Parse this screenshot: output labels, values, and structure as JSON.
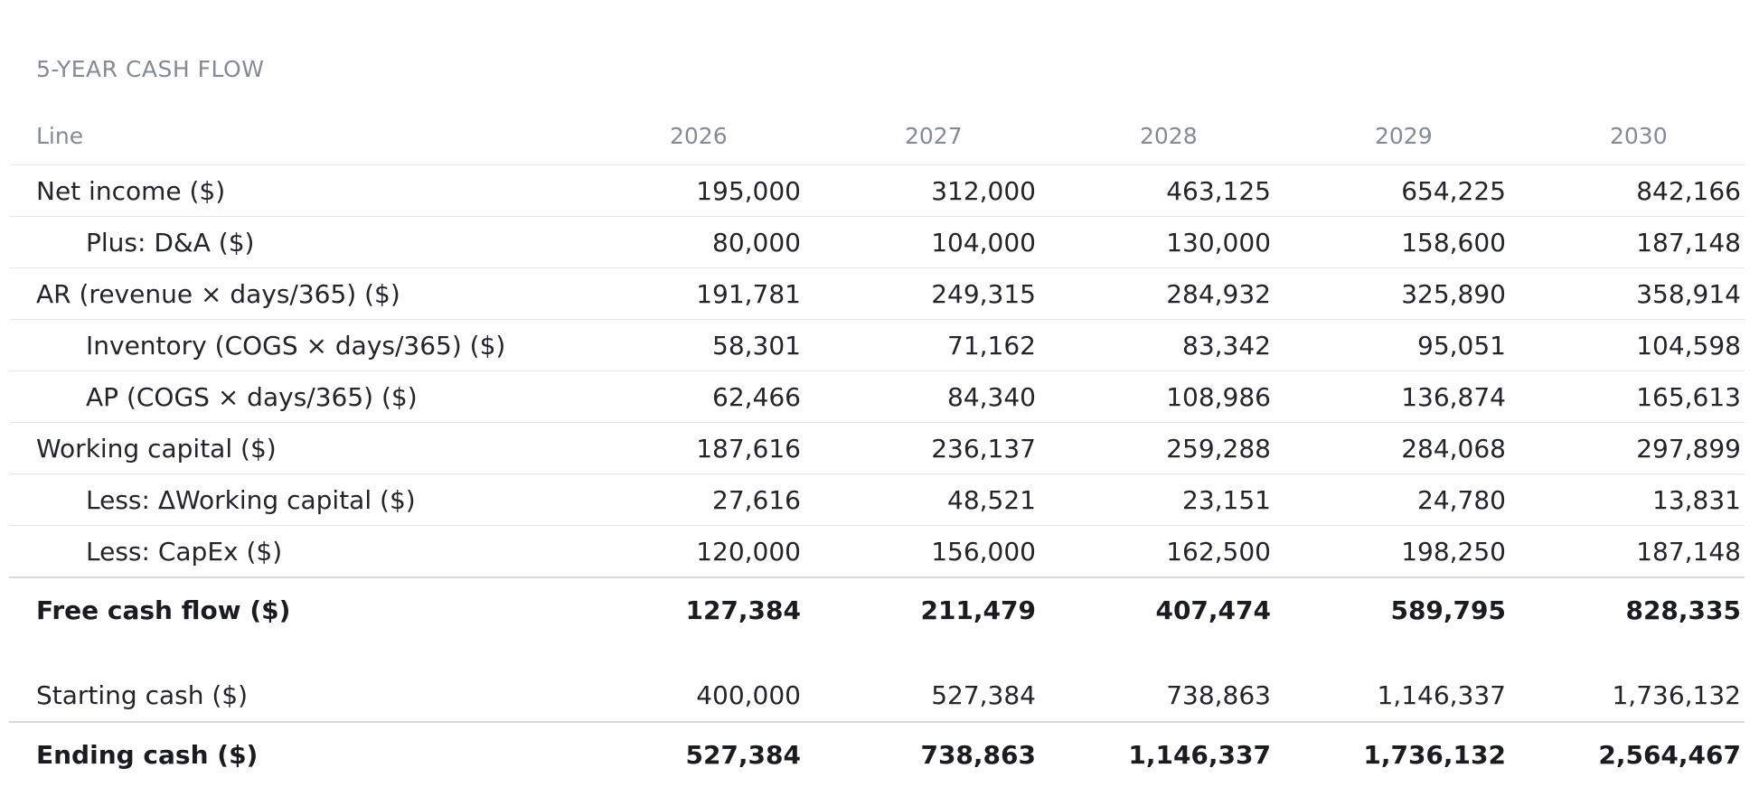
{
  "section_title": "5-YEAR CASH FLOW",
  "header": {
    "line": "Line",
    "years": [
      "2026",
      "2027",
      "2028",
      "2029",
      "2030"
    ]
  },
  "rows": [
    {
      "label": "Net income ($)",
      "values": [
        "195,000",
        "312,000",
        "463,125",
        "654,225",
        "842,166"
      ]
    },
    {
      "label": "Plus: D&A ($)",
      "values": [
        "80,000",
        "104,000",
        "130,000",
        "158,600",
        "187,148"
      ]
    },
    {
      "label": "AR (revenue × days/365) ($)",
      "values": [
        "191,781",
        "249,315",
        "284,932",
        "325,890",
        "358,914"
      ]
    },
    {
      "label": "Inventory (COGS × days/365) ($)",
      "values": [
        "58,301",
        "71,162",
        "83,342",
        "95,051",
        "104,598"
      ]
    },
    {
      "label": "AP (COGS × days/365) ($)",
      "values": [
        "62,466",
        "84,340",
        "108,986",
        "136,874",
        "165,613"
      ]
    },
    {
      "label": "Working capital ($)",
      "values": [
        "187,616",
        "236,137",
        "259,288",
        "284,068",
        "297,899"
      ]
    },
    {
      "label": "Less: ΔWorking capital ($)",
      "values": [
        "27,616",
        "48,521",
        "23,151",
        "24,780",
        "13,831"
      ]
    },
    {
      "label": "Less: CapEx ($)",
      "values": [
        "120,000",
        "156,000",
        "162,500",
        "198,250",
        "187,148"
      ]
    }
  ],
  "free_cash_flow": {
    "label": "Free cash flow ($)",
    "values": [
      "127,384",
      "211,479",
      "407,474",
      "589,795",
      "828,335"
    ]
  },
  "starting_cash": {
    "label": "Starting cash ($)",
    "values": [
      "400,000",
      "527,384",
      "738,863",
      "1,146,337",
      "1,736,132"
    ]
  },
  "ending_cash": {
    "label": "Ending cash ($)",
    "values": [
      "527,384",
      "738,863",
      "1,146,337",
      "1,736,132",
      "2,564,467"
    ]
  }
}
